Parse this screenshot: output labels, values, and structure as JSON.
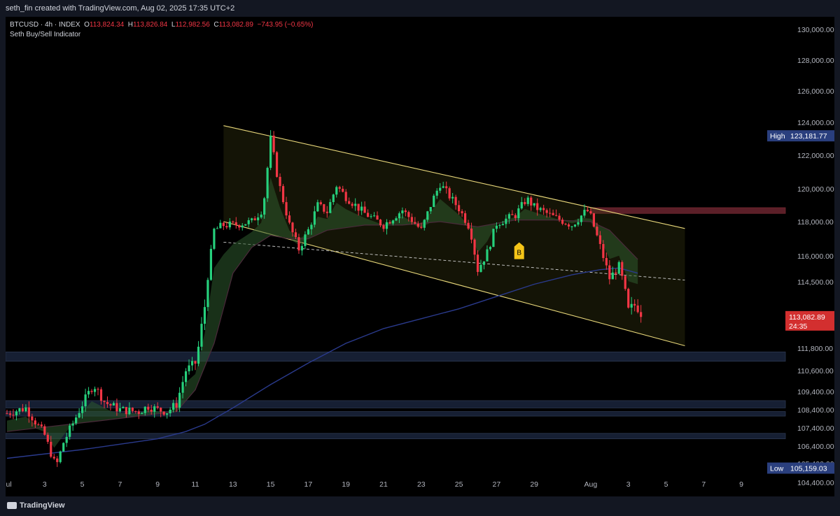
{
  "header": {
    "caption": "seth_fin created with TradingView.com, Aug 02, 2025 17:35 UTC+2"
  },
  "legend": {
    "symbol": "BTCUSD · 4h · INDEX",
    "o_label": "O",
    "o": "113,824.34",
    "h_label": "H",
    "h": "113,826.84",
    "l_label": "L",
    "l": "112,982.56",
    "c_label": "C",
    "c": "113,082.89",
    "change": "−743.95 (−0.65%)",
    "indicator": "Seth Buy/Sell Indicator"
  },
  "footer": {
    "brand": "TradingView"
  },
  "colors": {
    "up": "#26d07c",
    "down": "#f23645",
    "channel": "#e8d77a",
    "ma": "#2a3a8c",
    "zone": "#1e2a44",
    "resist": "#6b2530",
    "label_blue": "#2a3f7e",
    "last": "#d32f2f",
    "signal": "#f5c518"
  },
  "chart_data": {
    "type": "candlestick",
    "symbol": "BTCUSD",
    "timeframe": "4h",
    "indicator": "Seth Buy/Sell Indicator",
    "yaxis_ticks": [
      "130,000.00",
      "128,000.00",
      "126,000.00",
      "124,000.00",
      "122,000.00",
      "120,000.00",
      "118,000.00",
      "116,000.00",
      "114,500.00",
      "111,800.00",
      "110,600.00",
      "109,400.00",
      "108,400.00",
      "107,400.00",
      "106,400.00",
      "105,400.00",
      "104,400.00"
    ],
    "xaxis_ticks": [
      "Jul",
      "3",
      "5",
      "7",
      "9",
      "11",
      "13",
      "15",
      "17",
      "19",
      "21",
      "23",
      "25",
      "27",
      "29",
      "Aug",
      "3",
      "5",
      "7",
      "9"
    ],
    "labels": {
      "high_tag": "High",
      "high_value": "123,181.77",
      "low_tag": "Low",
      "low_value": "105,159.03",
      "last_value": "113,082.89",
      "countdown": "24:35",
      "signal": "B"
    },
    "close_path": [
      [
        0,
        108200
      ],
      [
        1,
        108500
      ],
      [
        2,
        107000
      ],
      [
        2.6,
        105200
      ],
      [
        3,
        106600
      ],
      [
        4,
        108700
      ],
      [
        4.6,
        109800
      ],
      [
        5.2,
        108800
      ],
      [
        6,
        108400
      ],
      [
        7,
        108300
      ],
      [
        7.5,
        108600
      ],
      [
        8,
        108400
      ],
      [
        8.5,
        108300
      ],
      [
        9,
        108700
      ],
      [
        9.5,
        110600
      ],
      [
        10,
        111000
      ],
      [
        10.5,
        113500
      ],
      [
        11,
        117500
      ],
      [
        11.5,
        117800
      ],
      [
        12,
        117800
      ],
      [
        13,
        118000
      ],
      [
        13.6,
        118800
      ],
      [
        14,
        123000
      ],
      [
        14.4,
        120500
      ],
      [
        15,
        117800
      ],
      [
        15.5,
        116400
      ],
      [
        16,
        117500
      ],
      [
        16.5,
        119000
      ],
      [
        17,
        118600
      ],
      [
        17.5,
        120200
      ],
      [
        18,
        119500
      ],
      [
        19,
        118500
      ],
      [
        20,
        117800
      ],
      [
        21,
        118700
      ],
      [
        22,
        117500
      ],
      [
        22.6,
        119300
      ],
      [
        23,
        120300
      ],
      [
        24,
        118800
      ],
      [
        24.6,
        117600
      ],
      [
        25,
        115200
      ],
      [
        25.5,
        116200
      ],
      [
        26,
        117900
      ],
      [
        27,
        118400
      ],
      [
        27.6,
        119400
      ],
      [
        28,
        118900
      ],
      [
        29,
        118300
      ],
      [
        30,
        117800
      ],
      [
        30.8,
        118700
      ],
      [
        31,
        118300
      ],
      [
        31.6,
        116200
      ],
      [
        32,
        114700
      ],
      [
        32.5,
        115400
      ],
      [
        33,
        113300
      ],
      [
        33.4,
        113600
      ],
      [
        33.8,
        113082
      ]
    ],
    "ma_fast_path": [
      [
        0,
        107200
      ],
      [
        5,
        107800
      ],
      [
        9,
        108300
      ],
      [
        10,
        109500
      ],
      [
        11,
        112000
      ],
      [
        12,
        115000
      ],
      [
        13,
        116500
      ],
      [
        14,
        117200
      ],
      [
        15,
        117000
      ],
      [
        16,
        117000
      ],
      [
        17,
        117500
      ],
      [
        19,
        117800
      ],
      [
        21,
        117800
      ],
      [
        23,
        118000
      ],
      [
        25,
        117700
      ],
      [
        27,
        118100
      ],
      [
        29,
        118100
      ],
      [
        31,
        118000
      ],
      [
        32,
        117500
      ],
      [
        33.5,
        115800
      ]
    ],
    "ma_slow_path": [
      [
        0,
        105700
      ],
      [
        4,
        106200
      ],
      [
        8,
        106800
      ],
      [
        9.5,
        107200
      ],
      [
        10.5,
        107600
      ],
      [
        12,
        108500
      ],
      [
        14,
        109800
      ],
      [
        16,
        111000
      ],
      [
        18,
        112000
      ],
      [
        20,
        112600
      ],
      [
        22,
        113000
      ],
      [
        24,
        113400
      ],
      [
        26,
        113900
      ],
      [
        28,
        114400
      ],
      [
        30,
        114900
      ],
      [
        31.5,
        115200
      ],
      [
        32.5,
        115300
      ],
      [
        33.5,
        115000
      ]
    ],
    "channel": {
      "upper": [
        [
          11.5,
          123800
        ],
        [
          36,
          117600
        ]
      ],
      "lower": [
        [
          11.5,
          118000
        ],
        [
          36,
          111900
        ]
      ],
      "mid": [
        [
          11.5,
          116800
        ],
        [
          36,
          114600
        ]
      ]
    },
    "zones": [
      [
        111100,
        111600
      ],
      [
        108500,
        108900
      ],
      [
        108050,
        108300
      ],
      [
        106800,
        107100
      ],
      [
        118500,
        118850
      ]
    ]
  }
}
